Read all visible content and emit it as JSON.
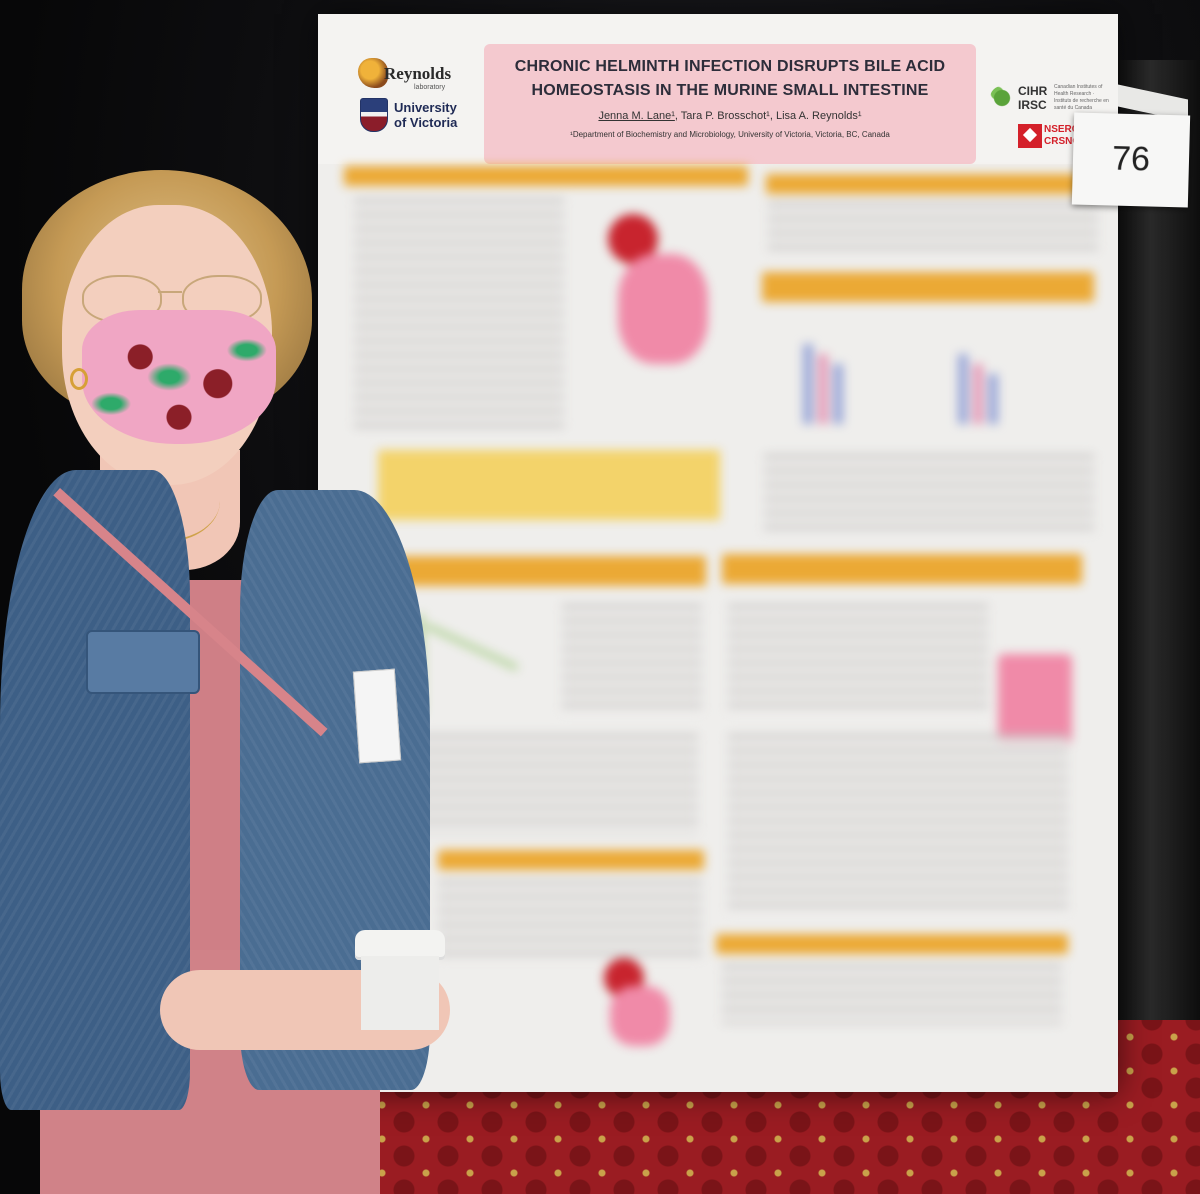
{
  "poster": {
    "lab_logo": "Reynolds",
    "lab_logo_sub": "laboratory",
    "university_line1": "University",
    "university_line2": "of Victoria",
    "title_line1": "CHRONIC HELMINTH INFECTION DISRUPTS BILE ACID",
    "title_line2": "HOMEOSTASIS IN THE MURINE SMALL INTESTINE",
    "author1": "Jenna M. Lane¹",
    "author_rest": ", Tara P. Brosschot¹, Lisa A. Reynolds¹",
    "affiliation": "¹Department of Biochemistry and Microbiology, University of Victoria, Victoria, BC, Canada",
    "cihr": "CIHR",
    "irsc": "IRSC",
    "cihr_small": "Canadian Institutes of Health Research · Instituts de recherche en santé du Canada",
    "nserc": "NSERC",
    "crsng": "CRSNG",
    "colors": {
      "banner": "#eba935",
      "title_box": "#f4c9cf",
      "background": "#efeeec"
    }
  },
  "card": {
    "number": "76"
  }
}
